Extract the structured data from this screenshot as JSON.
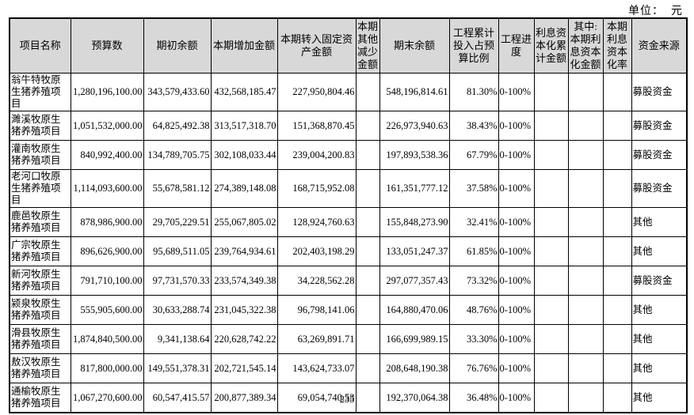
{
  "page": {
    "unit_label": "单位：  元",
    "page_number": "235"
  },
  "colors": {
    "header_background": "#d8d8d8",
    "border": "#000000",
    "text": "#000000",
    "page_background": "#ffffff"
  },
  "table": {
    "columns": [
      "项目名称",
      "预算数",
      "期初余额",
      "本期增加金额",
      "本期转入固定资产金额",
      "本期其他减少金额",
      "期末余额",
      "工程累计投入占预算比例",
      "工程进度",
      "利息资本化累计金额",
      "其中:本期利息资本化金额",
      "本期利息资本化率",
      "资金来源"
    ],
    "rows": [
      [
        "翁牛特牧原生猪养殖项目",
        "1,280,196,100.00",
        "343,579,433.60",
        "432,568,185.47",
        "227,950,804.46",
        "",
        "548,196,814.61",
        "81.30%",
        "0-100%",
        "",
        "",
        "",
        "募股资金"
      ],
      [
        "濉溪牧原生猪养殖项目",
        "1,051,532,000.00",
        "64,825,492.38",
        "313,517,318.70",
        "151,368,870.45",
        "",
        "226,973,940.63",
        "38.43%",
        "0-100%",
        "",
        "",
        "",
        "募股资金"
      ],
      [
        "灌南牧原生猪养殖项目",
        "840,992,400.00",
        "134,789,705.75",
        "302,108,033.44",
        "239,004,200.83",
        "",
        "197,893,538.36",
        "67.79%",
        "0-100%",
        "",
        "",
        "",
        "募股资金"
      ],
      [
        "老河口牧原生猪养殖项目",
        "1,114,093,600.00",
        "55,678,581.12",
        "274,389,148.08",
        "168,715,952.08",
        "",
        "161,351,777.12",
        "37.58%",
        "0-100%",
        "",
        "",
        "",
        "募股资金"
      ],
      [
        "鹿邑牧原生猪养殖项目",
        "878,986,900.00",
        "29,705,229.51",
        "255,067,805.02",
        "128,924,760.63",
        "",
        "155,848,273.90",
        "32.41%",
        "0-100%",
        "",
        "",
        "",
        "其他"
      ],
      [
        "广宗牧原生猪养殖项目",
        "896,626,900.00",
        "95,689,511.05",
        "239,764,934.61",
        "202,403,198.29",
        "",
        "133,051,247.37",
        "61.85%",
        "0-100%",
        "",
        "",
        "",
        "其他"
      ],
      [
        "新河牧原生猪养殖项目",
        "791,710,100.00",
        "97,731,570.33",
        "233,574,349.38",
        "34,228,562.28",
        "",
        "297,077,357.43",
        "73.32%",
        "0-100%",
        "",
        "",
        "",
        "募股资金"
      ],
      [
        "颍泉牧原生猪养殖项目",
        "555,905,600.00",
        "30,633,288.74",
        "231,045,322.38",
        "96,798,141.06",
        "",
        "164,880,470.06",
        "48.76%",
        "0-100%",
        "",
        "",
        "",
        "其他"
      ],
      [
        "滑县牧原生猪养殖项目",
        "1,874,840,500.00",
        "9,341,138.64",
        "220,628,742.22",
        "63,269,891.71",
        "",
        "166,699,989.15",
        "33.30%",
        "0-100%",
        "",
        "",
        "",
        "其他"
      ],
      [
        "敖汉牧原生猪养殖项目",
        "817,800,000.00",
        "149,551,378.31",
        "202,721,545.14",
        "143,624,733.07",
        "",
        "208,648,190.38",
        "76.76%",
        "0-100%",
        "",
        "",
        "",
        "其他"
      ],
      [
        "通榆牧原生猪养殖项目",
        "1,067,270,600.00",
        "60,547,415.57",
        "200,877,389.34",
        "69,054,740.53",
        "",
        "192,370,064.38",
        "36.48%",
        "0-100%",
        "",
        "",
        "",
        "其他"
      ]
    ]
  }
}
